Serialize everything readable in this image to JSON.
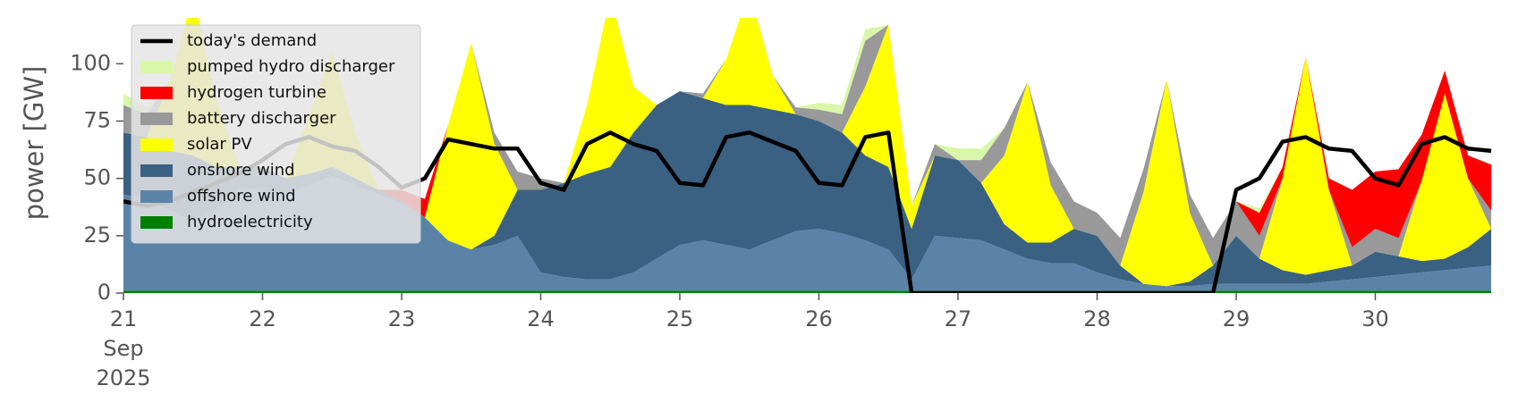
{
  "chart_data": {
    "type": "area",
    "ylabel": "power [GW]",
    "x": [
      "2025-09-21T00:00",
      "2025-09-21T04:00",
      "2025-09-21T08:00",
      "2025-09-21T12:00",
      "2025-09-21T16:00",
      "2025-09-21T20:00",
      "2025-09-22T00:00",
      "2025-09-22T04:00",
      "2025-09-22T08:00",
      "2025-09-22T12:00",
      "2025-09-22T16:00",
      "2025-09-22T20:00",
      "2025-09-23T00:00",
      "2025-09-23T04:00",
      "2025-09-23T08:00",
      "2025-09-23T12:00",
      "2025-09-23T16:00",
      "2025-09-23T20:00",
      "2025-09-24T00:00",
      "2025-09-24T04:00",
      "2025-09-24T08:00",
      "2025-09-24T12:00",
      "2025-09-24T16:00",
      "2025-09-24T20:00",
      "2025-09-25T00:00",
      "2025-09-25T04:00",
      "2025-09-25T08:00",
      "2025-09-25T12:00",
      "2025-09-25T16:00",
      "2025-09-25T20:00",
      "2025-09-26T00:00",
      "2025-09-26T04:00",
      "2025-09-26T08:00",
      "2025-09-26T12:00",
      "2025-09-26T16:00",
      "2025-09-26T20:00",
      "2025-09-27T00:00",
      "2025-09-27T04:00",
      "2025-09-27T08:00",
      "2025-09-27T12:00",
      "2025-09-27T16:00",
      "2025-09-27T20:00",
      "2025-09-28T00:00",
      "2025-09-28T04:00",
      "2025-09-28T08:00",
      "2025-09-28T12:00",
      "2025-09-28T16:00",
      "2025-09-28T20:00",
      "2025-09-29T00:00",
      "2025-09-29T04:00",
      "2025-09-29T08:00",
      "2025-09-29T12:00",
      "2025-09-29T16:00",
      "2025-09-29T20:00",
      "2025-09-30T00:00",
      "2025-09-30T04:00",
      "2025-09-30T08:00",
      "2025-09-30T12:00",
      "2025-09-30T16:00",
      "2025-09-30T20:00"
    ],
    "series": [
      {
        "name": "today's demand",
        "type": "line",
        "color": "#000000",
        "values": [
          40,
          38,
          40,
          44,
          48,
          52,
          58,
          65,
          68,
          64,
          62,
          55,
          46,
          50,
          67,
          65,
          63,
          63,
          48,
          45,
          65,
          70,
          65,
          62,
          48,
          47,
          68,
          70,
          66,
          62,
          48,
          47,
          68,
          70,
          0,
          0,
          0,
          0,
          0,
          0,
          0,
          0,
          0,
          0,
          0,
          0,
          0,
          0,
          45,
          50,
          66,
          68,
          63,
          62,
          50,
          47,
          65,
          68,
          63,
          62
        ]
      },
      {
        "name": "pumped hydro discharger",
        "type": "area",
        "color": "#d9f7a8",
        "values": [
          5,
          3,
          0,
          0,
          0,
          0,
          0,
          0,
          0,
          0,
          0,
          0,
          0,
          0,
          0,
          0,
          0,
          0,
          0,
          0,
          0,
          0,
          0,
          0,
          0,
          0,
          0,
          0,
          0,
          0,
          3,
          4,
          5,
          0,
          0,
          0,
          5,
          5,
          0,
          0,
          0,
          0,
          0,
          0,
          0,
          0,
          0,
          0,
          0,
          2,
          0,
          0,
          0,
          0,
          0,
          0,
          0,
          0,
          0,
          0
        ]
      },
      {
        "name": "hydrogen turbine",
        "type": "area",
        "color": "#ff0000",
        "values": [
          0,
          0,
          0,
          0,
          0,
          0,
          0,
          0,
          0,
          0,
          0,
          0,
          5,
          8,
          0,
          0,
          0,
          0,
          0,
          0,
          0,
          0,
          0,
          0,
          0,
          0,
          0,
          0,
          0,
          0,
          0,
          0,
          0,
          0,
          0,
          0,
          0,
          0,
          0,
          0,
          0,
          0,
          0,
          0,
          0,
          0,
          0,
          0,
          0,
          10,
          5,
          0,
          5,
          25,
          25,
          30,
          20,
          10,
          10,
          20
        ]
      },
      {
        "name": "battery discharger",
        "type": "area",
        "color": "#999999",
        "values": [
          12,
          10,
          0,
          0,
          0,
          0,
          0,
          0,
          0,
          0,
          0,
          0,
          0,
          0,
          0,
          0,
          5,
          8,
          5,
          0,
          0,
          0,
          0,
          0,
          0,
          2,
          0,
          0,
          0,
          3,
          5,
          8,
          20,
          0,
          0,
          5,
          0,
          10,
          12,
          0,
          10,
          12,
          10,
          12,
          10,
          0,
          8,
          12,
          15,
          10,
          0,
          0,
          0,
          8,
          10,
          8,
          0,
          0,
          0,
          8
        ]
      },
      {
        "name": "solar PV",
        "type": "area",
        "color": "#ffff00",
        "values": [
          0,
          0,
          30,
          70,
          30,
          0,
          0,
          0,
          25,
          50,
          20,
          0,
          0,
          0,
          50,
          90,
          40,
          0,
          0,
          0,
          30,
          75,
          20,
          0,
          0,
          0,
          20,
          50,
          15,
          0,
          0,
          0,
          30,
          62,
          10,
          0,
          0,
          0,
          30,
          70,
          25,
          0,
          0,
          0,
          40,
          90,
          30,
          0,
          0,
          0,
          40,
          95,
          35,
          0,
          0,
          0,
          35,
          72,
          30,
          0
        ]
      },
      {
        "name": "onshore wind",
        "type": "area",
        "color": "#3b6182",
        "values": [
          27,
          27,
          26,
          29,
          19,
          9,
          10,
          7,
          5,
          4,
          3,
          2,
          1,
          0,
          0,
          0,
          4,
          20,
          36,
          41,
          46,
          49,
          61,
          67,
          67,
          62,
          61,
          63,
          57,
          51,
          47,
          44,
          37,
          36,
          22,
          35,
          34,
          25,
          11,
          7,
          9,
          15,
          16,
          6,
          0,
          0,
          2,
          8,
          21,
          11,
          6,
          4,
          5,
          6,
          11,
          8,
          5,
          5,
          9,
          16
        ]
      },
      {
        "name": "offshore wind",
        "type": "area",
        "color": "#5b83a8",
        "values": [
          42,
          40,
          35,
          30,
          35,
          45,
          44,
          42,
          46,
          50,
          46,
          42,
          38,
          32,
          22,
          18,
          20,
          24,
          8,
          6,
          5,
          5,
          8,
          14,
          20,
          22,
          20,
          18,
          22,
          26,
          27,
          25,
          22,
          18,
          5,
          24,
          23,
          22,
          18,
          14,
          12,
          12,
          8,
          5,
          3,
          2,
          2,
          3,
          3,
          3,
          3,
          3,
          4,
          5,
          6,
          7,
          8,
          9,
          10,
          11
        ]
      },
      {
        "name": "hydroelectricity",
        "type": "area",
        "color": "#008000",
        "values": [
          1,
          1,
          1,
          1,
          1,
          1,
          1,
          1,
          1,
          1,
          1,
          1,
          1,
          1,
          1,
          1,
          1,
          1,
          1,
          1,
          1,
          1,
          1,
          1,
          1,
          1,
          1,
          1,
          1,
          1,
          1,
          1,
          1,
          1,
          1,
          1,
          1,
          1,
          1,
          1,
          1,
          1,
          1,
          1,
          1,
          1,
          1,
          1,
          1,
          1,
          1,
          1,
          1,
          1,
          1,
          1,
          1,
          1,
          1,
          1
        ]
      }
    ],
    "xlim": [
      "2025-09-21T00:00",
      "2025-10-01T00:00"
    ],
    "xticks": [
      {
        "value": "2025-09-21T00:00",
        "label": "21\nSep\n2025"
      },
      {
        "value": "2025-09-22T00:00",
        "label": "22"
      },
      {
        "value": "2025-09-23T00:00",
        "label": "23"
      },
      {
        "value": "2025-09-24T00:00",
        "label": "24"
      },
      {
        "value": "2025-09-25T00:00",
        "label": "25"
      },
      {
        "value": "2025-09-26T00:00",
        "label": "26"
      },
      {
        "value": "2025-09-27T00:00",
        "label": "27"
      },
      {
        "value": "2025-09-28T00:00",
        "label": "28"
      },
      {
        "value": "2025-09-29T00:00",
        "label": "29"
      },
      {
        "value": "2025-09-30T00:00",
        "label": "30"
      }
    ],
    "ylim": [
      0,
      120
    ],
    "yticks": [
      0,
      25,
      50,
      75,
      100
    ],
    "legend": "upper left"
  }
}
